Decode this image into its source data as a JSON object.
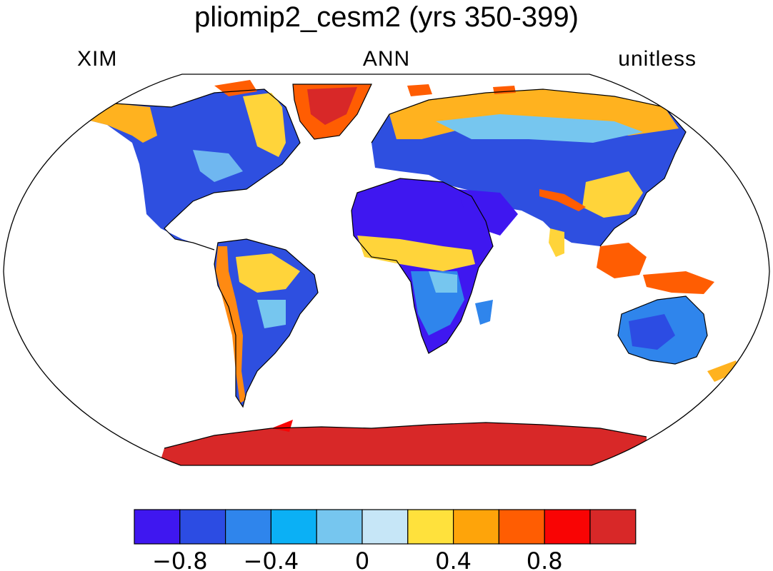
{
  "header": {
    "title": "pliomip2_cesm2 (yrs 350-399)",
    "left_label": "XIM",
    "center_label": "ANN",
    "right_label": "unitless"
  },
  "map": {
    "projection": "Robinson",
    "land_fill": "#2e4fe0",
    "ocean_fill": "#ffffff",
    "coastline_color": "#000000"
  },
  "colorbar": {
    "colors": [
      "#3f17f0",
      "#2c4ce3",
      "#2f85ec",
      "#0bb0f5",
      "#76c6ef",
      "#c6e6f7",
      "#ffe13c",
      "#fea40a",
      "#ff5d02",
      "#f90404",
      "#d82828"
    ],
    "tick_labels": [
      "−0.8",
      "−0.4",
      "0",
      "0.4",
      "0.8"
    ]
  }
}
